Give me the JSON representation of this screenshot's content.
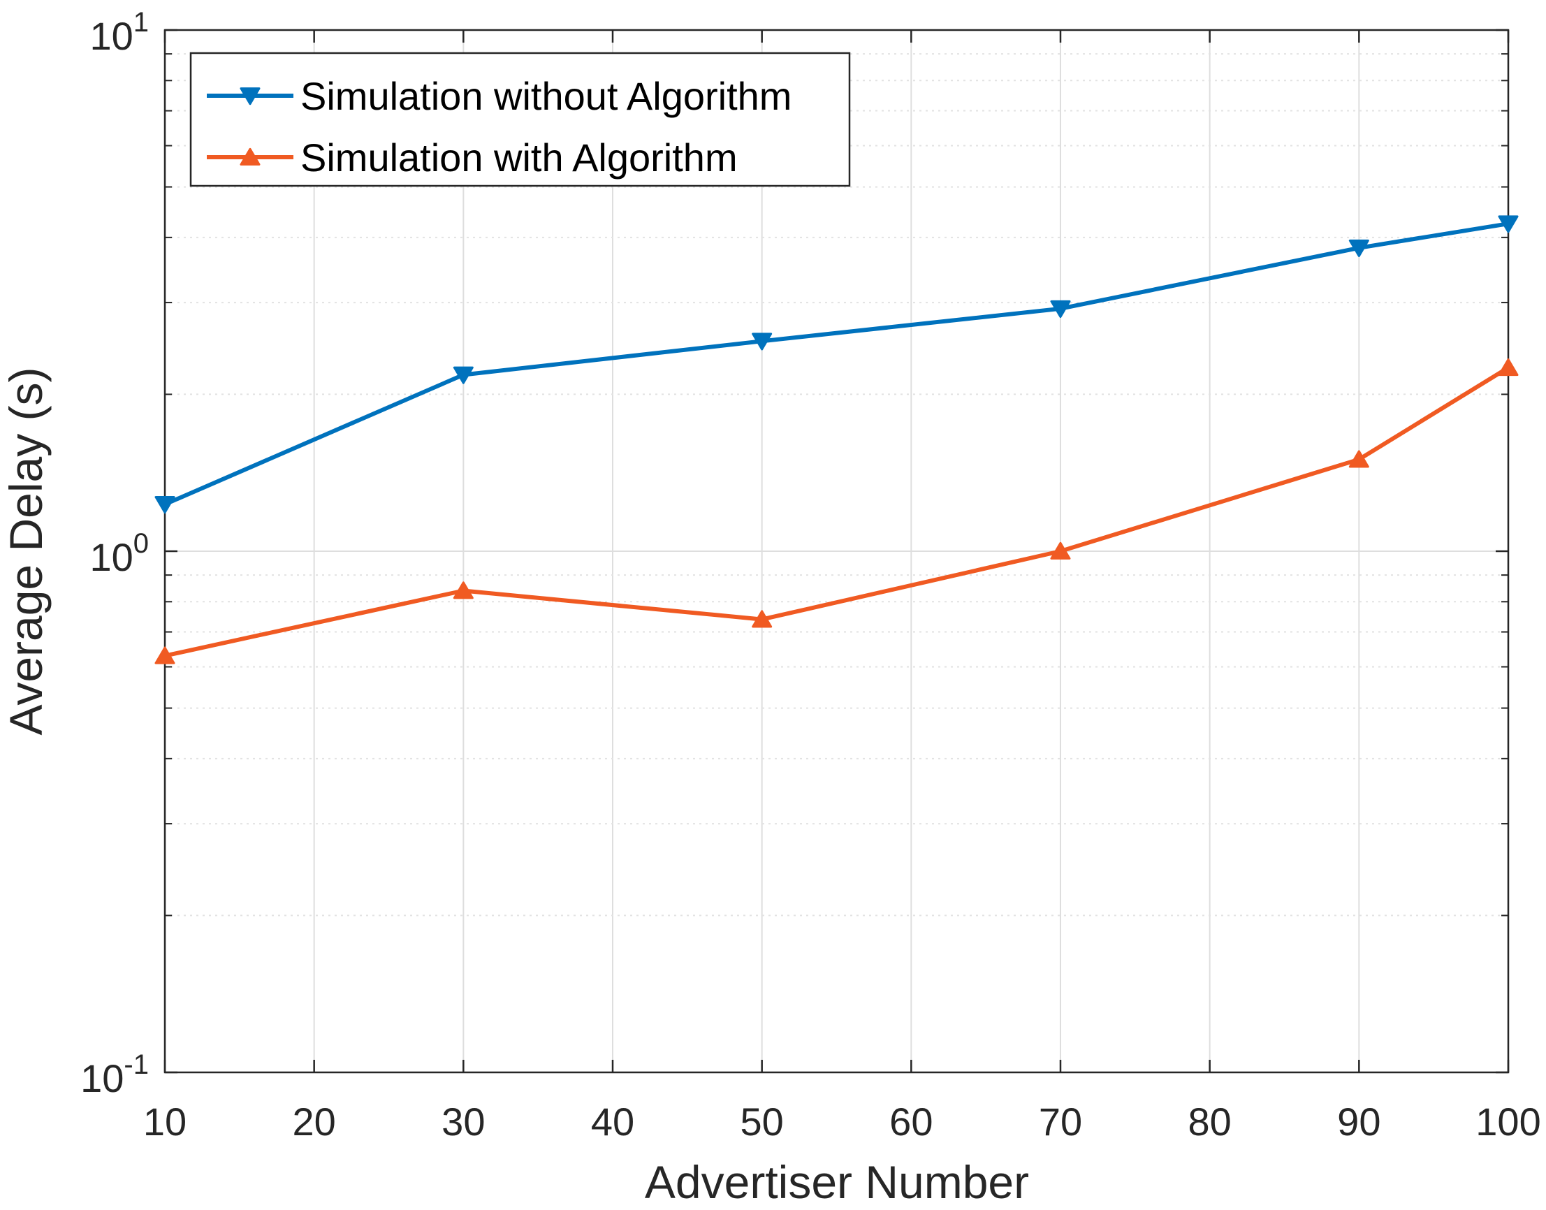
{
  "chart_data": {
    "type": "line",
    "yscale": "log",
    "xlabel": "Advertiser Number",
    "ylabel": "Average Delay (s)",
    "xlim": [
      10,
      100
    ],
    "ylim": [
      0.1,
      10
    ],
    "xticks": [
      10,
      20,
      30,
      40,
      50,
      60,
      70,
      80,
      90,
      100
    ],
    "yticks": [
      {
        "value": 0.1,
        "base": "10",
        "exp": "-1"
      },
      {
        "value": 1,
        "base": "10",
        "exp": "0"
      },
      {
        "value": 10,
        "base": "10",
        "exp": "1"
      }
    ],
    "grid": true,
    "legend_position": "top-left",
    "series": [
      {
        "name": "Simulation without Algorithm",
        "color": "#0072bd",
        "marker": "triangle-down",
        "x": [
          10,
          30,
          50,
          70,
          90,
          100
        ],
        "y": [
          1.23,
          2.18,
          2.53,
          2.92,
          3.82,
          4.25
        ]
      },
      {
        "name": "Simulation with Algorithm",
        "color": "#f05a22",
        "marker": "triangle-up",
        "x": [
          10,
          30,
          50,
          70,
          90,
          100
        ],
        "y": [
          0.63,
          0.84,
          0.74,
          1.0,
          1.5,
          2.25
        ]
      }
    ]
  }
}
